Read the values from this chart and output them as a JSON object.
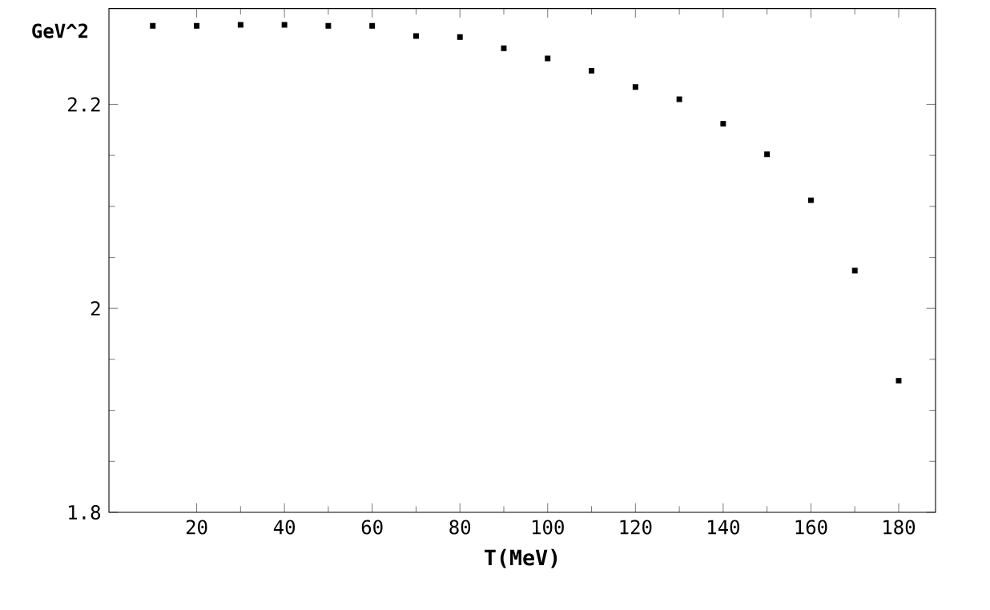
{
  "chart_data": {
    "type": "scatter",
    "xlabel": "T(MeV)",
    "ylabel": "GeV^2",
    "x": [
      10,
      20,
      30,
      40,
      50,
      60,
      70,
      80,
      90,
      100,
      110,
      120,
      130,
      140,
      150,
      160,
      170,
      180
    ],
    "values": [
      2.277,
      2.277,
      2.278,
      2.278,
      2.277,
      2.277,
      2.267,
      2.266,
      2.255,
      2.245,
      2.233,
      2.217,
      2.205,
      2.181,
      2.151,
      2.106,
      2.037,
      1.929
    ],
    "color": "#000000",
    "marker": "square",
    "xlim": [
      0,
      188.4
    ],
    "ylim": [
      1.8,
      2.294
    ],
    "xticks": [
      20,
      40,
      60,
      80,
      100,
      120,
      140,
      160,
      180
    ],
    "yticks": [
      1.8,
      2,
      2.2
    ],
    "grid": false
  }
}
